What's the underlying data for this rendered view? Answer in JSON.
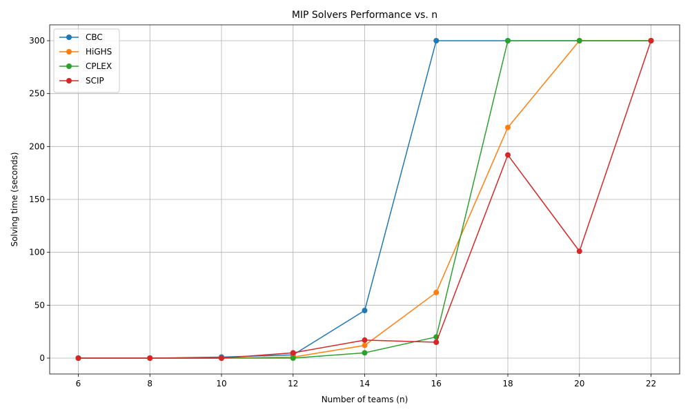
{
  "chart_data": {
    "type": "line",
    "title": "MIP Solvers Performance vs. n",
    "xlabel": "Number of teams (n)",
    "ylabel": "Solving time (seconds)",
    "x": [
      6,
      8,
      10,
      12,
      14,
      16,
      18,
      20,
      22
    ],
    "xticks": [
      6,
      8,
      10,
      12,
      14,
      16,
      18,
      20,
      22
    ],
    "yticks": [
      0,
      50,
      100,
      150,
      200,
      250,
      300
    ],
    "xlim": [
      5.2,
      22.8
    ],
    "ylim": [
      -15,
      315
    ],
    "grid": true,
    "legend_position": "upper-left",
    "markers": "circle",
    "series": [
      {
        "name": "CBC",
        "color": "#1f77b4",
        "values": [
          0,
          0,
          1,
          3,
          45,
          300,
          300,
          300,
          300
        ]
      },
      {
        "name": "HiGHS",
        "color": "#ff7f0e",
        "values": [
          0,
          0,
          0,
          1,
          12,
          62,
          218,
          300,
          300
        ]
      },
      {
        "name": "CPLEX",
        "color": "#2ca02c",
        "values": [
          0,
          0,
          0,
          0,
          5,
          20,
          300,
          300,
          300
        ]
      },
      {
        "name": "SCIP",
        "color": "#d62728",
        "values": [
          0,
          0,
          0,
          5,
          17,
          15,
          192,
          101,
          300
        ]
      }
    ]
  }
}
